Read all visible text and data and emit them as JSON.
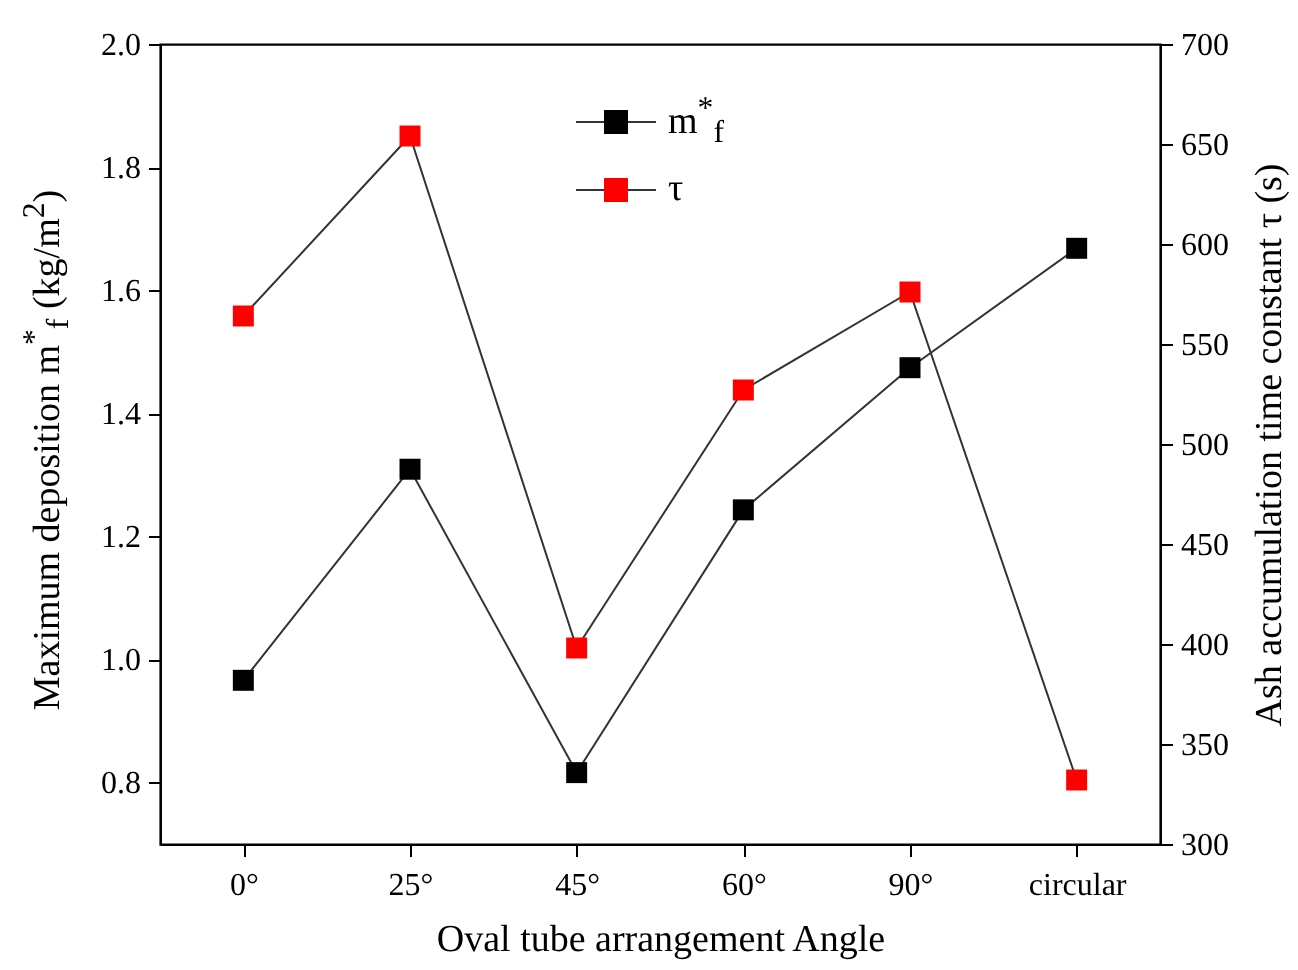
{
  "chart_data": {
    "type": "line",
    "xlabel": "Oval tube arrangement Angle",
    "ylabel": "Maximum deposition m$^{*}$$_{f}$ (kg/m$^{2}$)",
    "y2label": "Ash accumulation time constant τ (s)",
    "categories": [
      "0°",
      "25°",
      "45°",
      "60°",
      "90°",
      "circular"
    ],
    "series": [
      {
        "name": "m$^{*}$$_{f}$",
        "color": "#000000",
        "values": [
          0.966,
          1.309,
          0.816,
          1.243,
          1.474,
          1.668
        ]
      },
      {
        "name": "τ",
        "color": "#ff0000",
        "axis": "y2",
        "values": [
          564,
          654,
          398,
          527,
          576,
          332
        ]
      }
    ],
    "ylim": [
      0.7,
      2.0
    ],
    "yticks": [
      0.8,
      {
        "value": 1,
        "label": "1.0"
      },
      1.2,
      1.4,
      1.6,
      1.8,
      {
        "value": 2,
        "label": "2.0"
      }
    ],
    "y2lim": [
      300,
      700
    ],
    "y2ticks": [
      300,
      350,
      400,
      450,
      500,
      550,
      600,
      650,
      700
    ],
    "marker": "square",
    "line_style": "solid",
    "legend": "top",
    "grid": false
  }
}
